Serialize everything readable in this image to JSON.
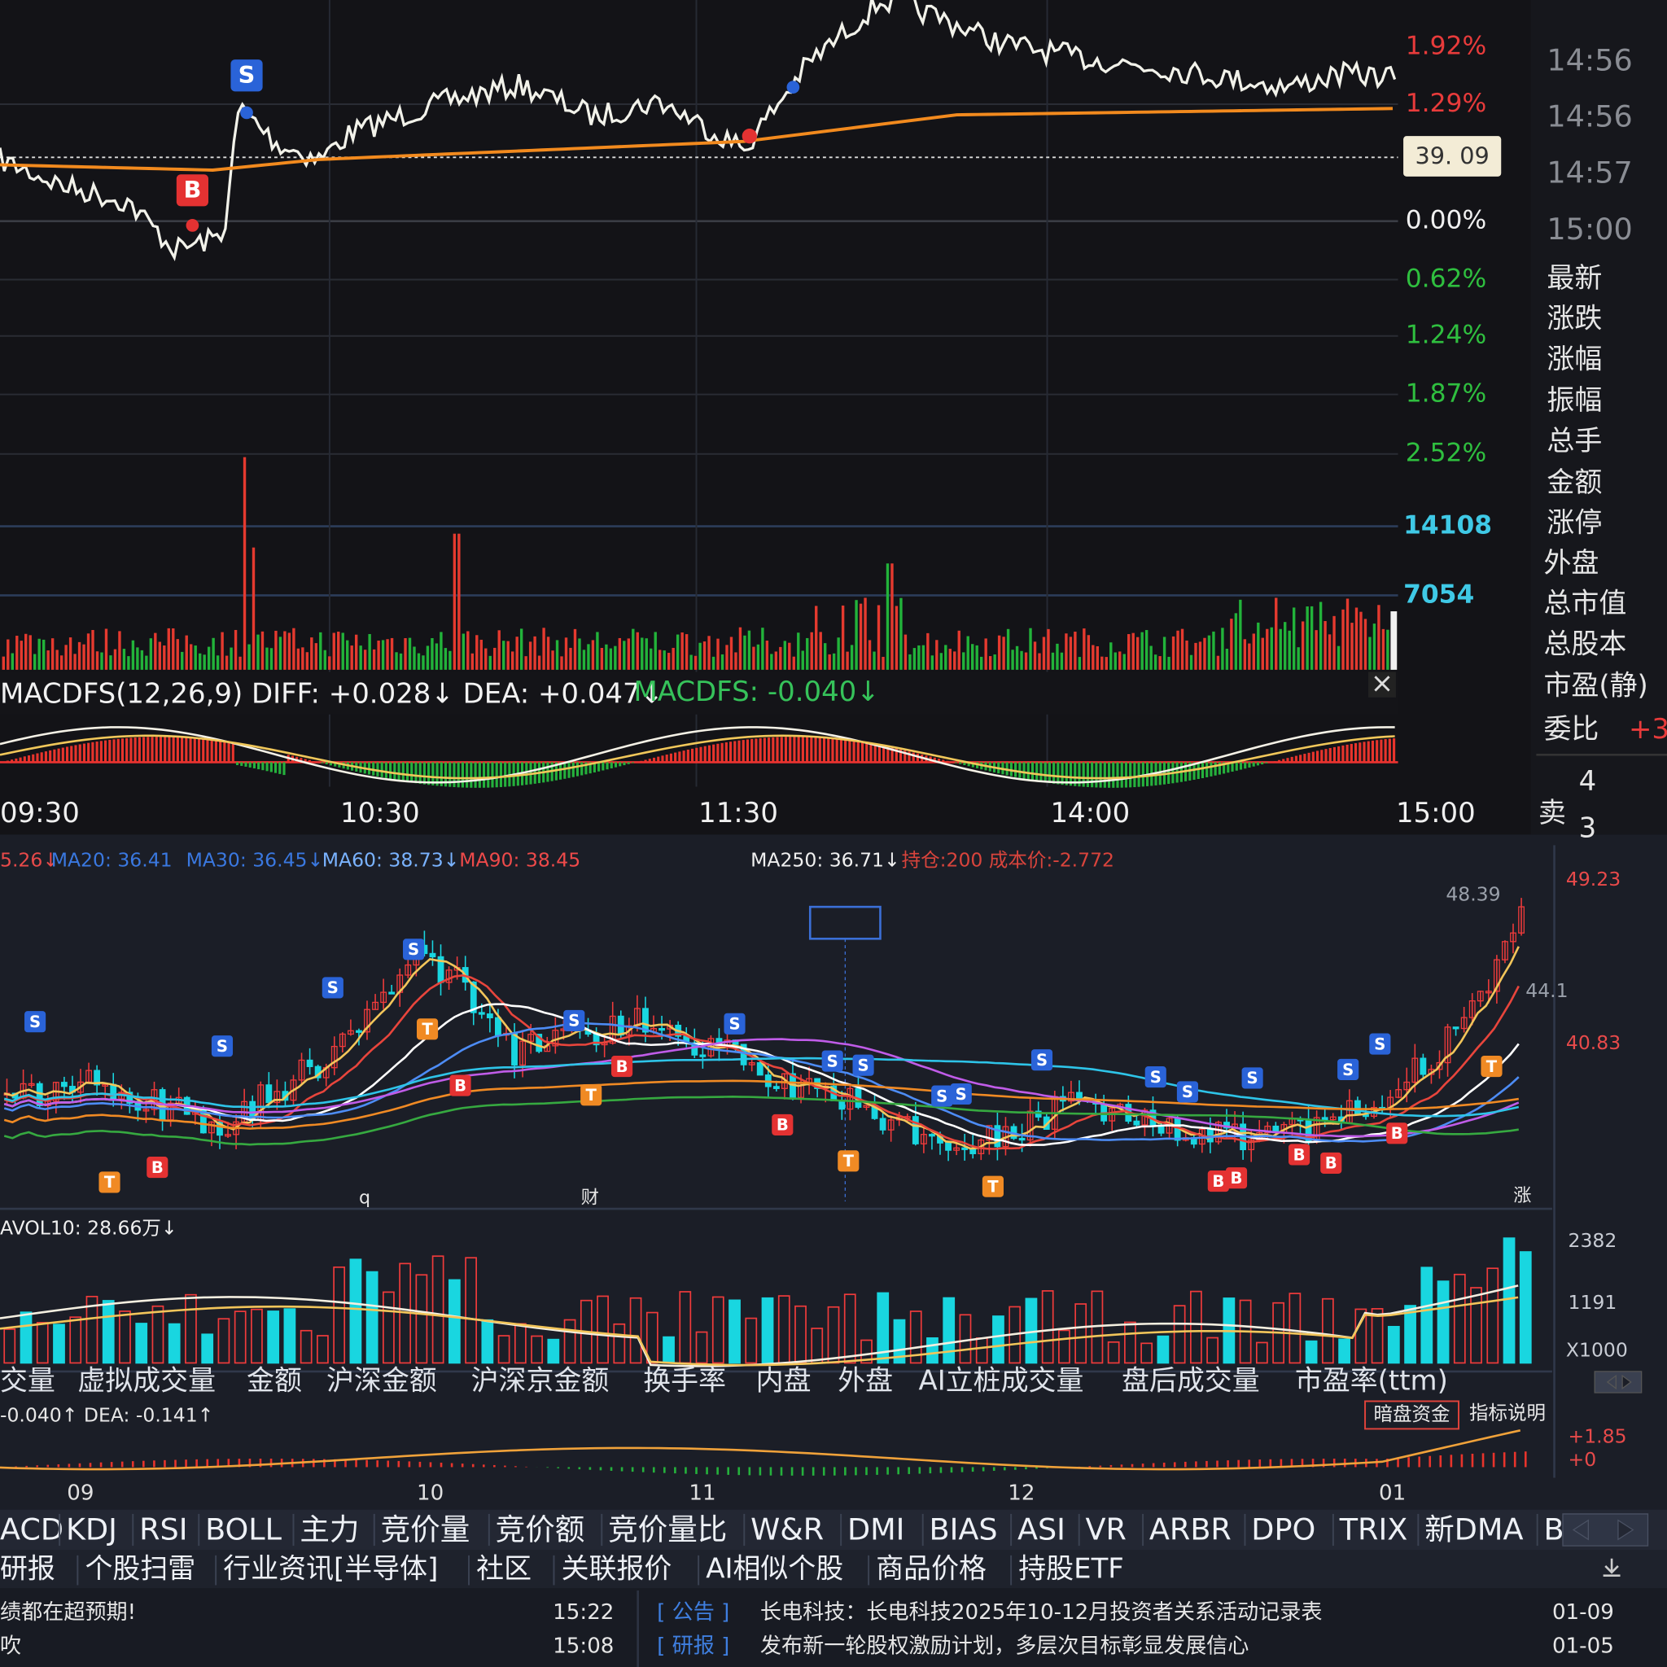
{
  "top_chart": {
    "price_axis": [
      "1.92%",
      "1.29%",
      "0.00%",
      "0.62%",
      "1.24%",
      "1.87%",
      "2.52%"
    ],
    "volume_axis": [
      "14108",
      "7054"
    ],
    "price_tag": "39. 09",
    "markers": [
      "S",
      "B"
    ],
    "macd_header": [
      "MACDFS(12,26,9) DIFF: +0.028↓ DEA: +0.047↓",
      "MACDFS: -0.040↓"
    ],
    "close_icon": "×",
    "time_axis": [
      "09:30",
      "10:30",
      "11:30",
      "14:00",
      "15:00"
    ]
  },
  "side_panel": {
    "times": [
      "14:56",
      "14:56",
      "14:57",
      "15:00"
    ],
    "fields": [
      "最新",
      "涨跌",
      "涨幅",
      "振幅",
      "总手",
      "金额",
      "涨停",
      "外盘",
      "总市值",
      "总股本",
      "市盈(静)",
      "委比"
    ],
    "ratio_value": "+3",
    "sell_label": "卖",
    "numbers": [
      "4",
      "3"
    ]
  },
  "bottom_chart": {
    "ma_legend": [
      "5.26↓",
      "MA20: 36.41",
      "MA30: 36.45↓",
      "MA60: 38.73↓",
      "MA90: 38.45",
      "MA250: 36.71↓",
      "持仓:200 成本价:-2.772"
    ],
    "price_labels": [
      "48.39",
      "49.23",
      "40.83",
      "44.1"
    ],
    "event_labels": [
      "q",
      "财",
      "涨"
    ],
    "markers": [
      "S",
      "S",
      "S",
      "S",
      "S",
      "S",
      "S",
      "S",
      "S",
      "S",
      "S",
      "S",
      "S",
      "S",
      "S",
      "S",
      "B",
      "B",
      "B",
      "B",
      "B",
      "B",
      "B",
      "B",
      "B",
      "T",
      "T",
      "T",
      "T",
      "T",
      "T"
    ],
    "volume_header": "AVOL10: 28.66万↓",
    "volume_axis": [
      "2382",
      "1191",
      "X1000"
    ],
    "volume_tabs": [
      "交量",
      "虚拟成交量",
      "金额",
      "沪深金额",
      "沪深京金额",
      "换手率",
      "内盘",
      "外盘",
      "AI立桩成交量",
      "盘后成交量",
      "市盈率(ttm)"
    ],
    "macd_header": "-0.040↑ DEA: -0.141↑",
    "buttons": [
      "暗盘资金",
      "指标说明"
    ],
    "macd_axis": [
      "+1.85",
      "+0"
    ],
    "months": [
      "09",
      "10",
      "11",
      "12",
      "01"
    ]
  },
  "indicator_tabs": [
    "ACD",
    "KDJ",
    "RSI",
    "BOLL",
    "主力",
    "竞价量",
    "竞价额",
    "竞价量比",
    "W&R",
    "DMI",
    "BIAS",
    "ASI",
    "VR",
    "ARBR",
    "DPO",
    "TRIX",
    "新DMA",
    "B"
  ],
  "info_tabs": [
    "研报",
    "个股扫雷",
    "行业资讯[半导体]",
    "社区",
    "关联报价",
    "AI相似个股",
    "商品价格",
    "持股ETF"
  ],
  "news": {
    "left": [
      {
        "title": "绩都在超预期!",
        "time": "15:22"
      },
      {
        "title": "吹",
        "time": "15:08"
      }
    ],
    "right": [
      {
        "tag": "[ 公告 ]",
        "title": "长电科技：长电科技2025年10-12月投资者关系活动记录表",
        "date": "01-09"
      },
      {
        "tag": "[ 研报 ]",
        "title": "发布新一轮股权激励计划，多层次目标彰显发展信心",
        "date": "01-05"
      }
    ]
  }
}
